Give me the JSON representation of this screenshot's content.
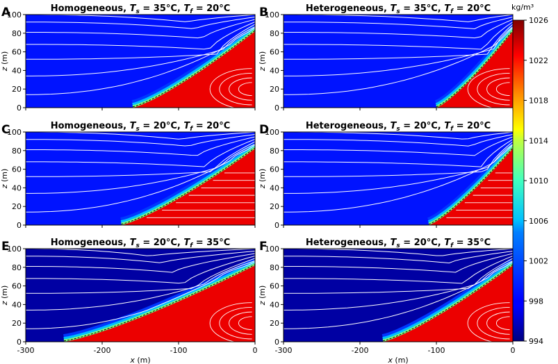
{
  "chart_data": {
    "type": "heatmap",
    "colorbar": {
      "label": "kg/m³",
      "min": 994,
      "max": 1026,
      "ticks": [
        994,
        998,
        1002,
        1006,
        1010,
        1014,
        1018,
        1022,
        1026
      ]
    },
    "xlim": [
      -300,
      0
    ],
    "ylim": [
      0,
      100
    ],
    "xticks": [
      -300,
      -200,
      -100,
      0
    ],
    "yticks": [
      0,
      20,
      40,
      60,
      80,
      100
    ],
    "xlabel": "x (m)",
    "ylabel": "z (m)",
    "panels": [
      {
        "letter": "A",
        "model": "Homogeneous",
        "ts": "35",
        "tf": "20",
        "toe_x": -160,
        "fresh_density": 999,
        "seepage_loops": true
      },
      {
        "letter": "B",
        "model": "Heterogeneous",
        "ts": "35",
        "tf": "20",
        "toe_x": -100,
        "fresh_density": 999,
        "seepage_loops": true
      },
      {
        "letter": "C",
        "model": "Homogeneous",
        "ts": "20",
        "tf": "20",
        "toe_x": -175,
        "fresh_density": 999,
        "seepage_loops": false
      },
      {
        "letter": "D",
        "model": "Heterogeneous",
        "ts": "20",
        "tf": "20",
        "toe_x": -110,
        "fresh_density": 999,
        "seepage_loops": false
      },
      {
        "letter": "E",
        "model": "Homogeneous",
        "ts": "20",
        "tf": "35",
        "toe_x": -250,
        "fresh_density": 995,
        "seepage_loops": true
      },
      {
        "letter": "F",
        "model": "Heterogeneous",
        "ts": "20",
        "tf": "35",
        "toe_x": -170,
        "fresh_density": 995,
        "seepage_loops": true
      }
    ]
  }
}
